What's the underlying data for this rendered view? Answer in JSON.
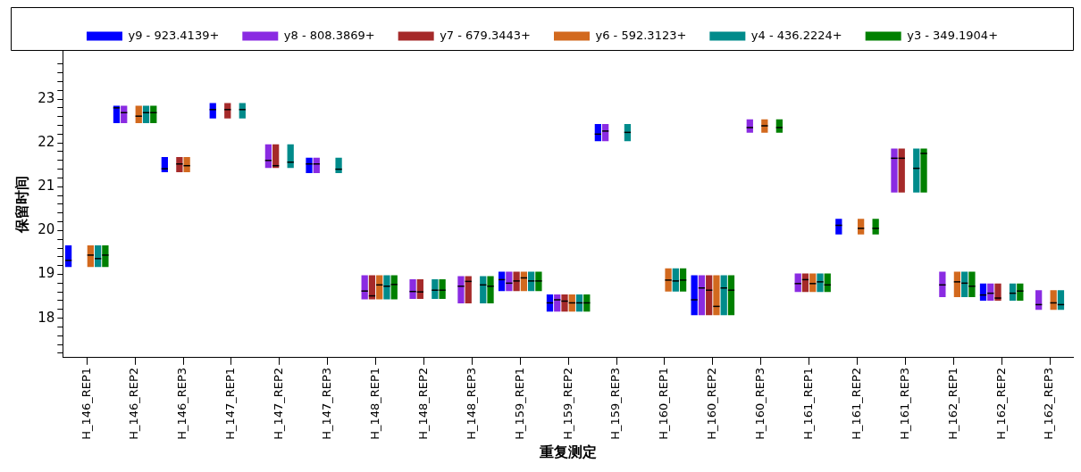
{
  "chart_data": {
    "type": "box",
    "xlabel": "重复测定",
    "ylabel": "保留时间",
    "legend": "top",
    "categories": [
      "H_146_REP1",
      "H_146_REP2",
      "H_146_REP3",
      "H_147_REP1",
      "H_147_REP2",
      "H_147_REP3",
      "H_148_REP1",
      "H_148_REP2",
      "H_148_REP3",
      "H_159_REP1",
      "H_159_REP2",
      "H_159_REP3",
      "H_160_REP1",
      "H_160_REP2",
      "H_160_REP3",
      "H_161_REP1",
      "H_161_REP2",
      "H_161_REP3",
      "H_162_REP1",
      "H_162_REP2",
      "H_162_REP3"
    ],
    "ylim": [
      17.1,
      24.1
    ],
    "yticks": [
      {
        "value": 17.2,
        "label": null
      },
      {
        "value": 17.4,
        "label": null
      },
      {
        "value": 17.6,
        "label": null
      },
      {
        "value": 17.8,
        "label": null
      },
      18,
      {
        "value": 18.2,
        "label": null
      },
      {
        "value": 18.4,
        "label": null
      },
      {
        "value": 18.6,
        "label": null
      },
      {
        "value": 18.8,
        "label": null
      },
      19,
      {
        "value": 19.2,
        "label": null
      },
      {
        "value": 19.4,
        "label": null
      },
      {
        "value": 19.6,
        "label": null
      },
      {
        "value": 19.8,
        "label": null
      },
      20,
      {
        "value": 20.2,
        "label": null
      },
      {
        "value": 20.4,
        "label": null
      },
      {
        "value": 20.6,
        "label": null
      },
      {
        "value": 20.8,
        "label": null
      },
      21,
      {
        "value": 21.2,
        "label": null
      },
      {
        "value": 21.4,
        "label": null
      },
      {
        "value": 21.6,
        "label": null
      },
      {
        "value": 21.8,
        "label": null
      },
      22,
      {
        "value": 22.2,
        "label": null
      },
      {
        "value": 22.4,
        "label": null
      },
      {
        "value": 22.6,
        "label": null
      },
      {
        "value": 22.8,
        "label": null
      },
      23,
      {
        "value": 23.2,
        "label": null
      },
      {
        "value": 23.4,
        "label": null
      },
      {
        "value": 23.6,
        "label": null
      },
      {
        "value": 23.8,
        "label": null
      }
    ],
    "series": [
      {
        "name": "y9 - 923.4139+",
        "color": "#0000ff",
        "boxes": [
          {
            "low": 19.17,
            "q1": 19.17,
            "median": 19.32,
            "q3": 19.66,
            "high": 19.66
          },
          {
            "low": 22.45,
            "q1": 22.45,
            "median": 22.8,
            "q3": 22.85,
            "high": 22.85
          },
          {
            "low": 21.33,
            "q1": 21.33,
            "median": 21.41,
            "q3": 21.68,
            "high": 21.68
          },
          {
            "low": 22.56,
            "q1": 22.56,
            "median": 22.76,
            "q3": 22.91,
            "high": 22.91
          },
          null,
          {
            "low": 21.31,
            "q1": 21.31,
            "median": 21.52,
            "q3": 21.66,
            "high": 21.66
          },
          null,
          null,
          null,
          {
            "low": 18.62,
            "q1": 18.62,
            "median": 18.88,
            "q3": 19.06,
            "high": 19.06
          },
          {
            "low": 18.15,
            "q1": 18.15,
            "median": 18.35,
            "q3": 18.54,
            "high": 18.54
          },
          {
            "low": 22.04,
            "q1": 22.04,
            "median": 22.2,
            "q3": 22.43,
            "high": 22.43
          },
          null,
          {
            "low": 18.07,
            "q1": 18.07,
            "median": 18.42,
            "q3": 18.98,
            "high": 18.98
          },
          null,
          null,
          {
            "low": 19.91,
            "q1": 19.91,
            "median": 20.12,
            "q3": 20.27,
            "high": 20.27
          },
          null,
          null,
          {
            "low": 18.4,
            "q1": 18.4,
            "median": 18.53,
            "q3": 18.79,
            "high": 18.79
          },
          null
        ]
      },
      {
        "name": "y8 - 808.3869+",
        "color": "#8a2be2",
        "boxes": [
          null,
          {
            "low": 22.45,
            "q1": 22.45,
            "median": 22.69,
            "q3": 22.85,
            "high": 22.85
          },
          null,
          null,
          {
            "low": 21.43,
            "q1": 21.43,
            "median": 21.6,
            "q3": 21.97,
            "high": 21.97
          },
          {
            "low": 21.31,
            "q1": 21.31,
            "median": 21.52,
            "q3": 21.66,
            "high": 21.66
          },
          {
            "low": 18.43,
            "q1": 18.43,
            "median": 18.62,
            "q3": 18.98,
            "high": 18.98
          },
          {
            "low": 18.44,
            "q1": 18.44,
            "median": 18.61,
            "q3": 18.89,
            "high": 18.89
          },
          {
            "low": 18.34,
            "q1": 18.34,
            "median": 18.73,
            "q3": 18.96,
            "high": 18.96
          },
          {
            "low": 18.62,
            "q1": 18.62,
            "median": 18.8,
            "q3": 19.06,
            "high": 19.06
          },
          {
            "low": 18.15,
            "q1": 18.15,
            "median": 18.42,
            "q3": 18.54,
            "high": 18.54
          },
          {
            "low": 22.04,
            "q1": 22.04,
            "median": 22.27,
            "q3": 22.43,
            "high": 22.43
          },
          null,
          {
            "low": 18.07,
            "q1": 18.07,
            "median": 18.69,
            "q3": 18.98,
            "high": 18.98
          },
          {
            "low": 22.23,
            "q1": 22.23,
            "median": 22.35,
            "q3": 22.54,
            "high": 22.54
          },
          {
            "low": 18.6,
            "q1": 18.6,
            "median": 18.79,
            "q3": 19.02,
            "high": 19.02
          },
          null,
          {
            "low": 20.87,
            "q1": 20.87,
            "median": 21.65,
            "q3": 21.87,
            "high": 21.87
          },
          {
            "low": 18.48,
            "q1": 18.48,
            "median": 18.76,
            "q3": 19.06,
            "high": 19.06
          },
          {
            "low": 18.4,
            "q1": 18.4,
            "median": 18.57,
            "q3": 18.79,
            "high": 18.79
          },
          {
            "low": 18.19,
            "q1": 18.19,
            "median": 18.31,
            "q3": 18.64,
            "high": 18.64
          }
        ]
      },
      {
        "name": "y7 - 679.3443+",
        "color": "#a52a2a",
        "boxes": [
          null,
          null,
          {
            "low": 21.33,
            "q1": 21.33,
            "median": 21.52,
            "q3": 21.68,
            "high": 21.68
          },
          {
            "low": 22.56,
            "q1": 22.56,
            "median": 22.76,
            "q3": 22.91,
            "high": 22.91
          },
          {
            "low": 21.43,
            "q1": 21.43,
            "median": 21.48,
            "q3": 21.97,
            "high": 21.97
          },
          null,
          {
            "low": 18.43,
            "q1": 18.43,
            "median": 18.51,
            "q3": 18.98,
            "high": 18.98
          },
          {
            "low": 18.44,
            "q1": 18.44,
            "median": 18.6,
            "q3": 18.89,
            "high": 18.89
          },
          {
            "low": 18.34,
            "q1": 18.34,
            "median": 18.84,
            "q3": 18.96,
            "high": 18.96
          },
          {
            "low": 18.62,
            "q1": 18.62,
            "median": 18.85,
            "q3": 19.06,
            "high": 19.06
          },
          {
            "low": 18.15,
            "q1": 18.15,
            "median": 18.39,
            "q3": 18.54,
            "high": 18.54
          },
          null,
          null,
          {
            "low": 18.07,
            "q1": 18.07,
            "median": 18.64,
            "q3": 18.98,
            "high": 18.98
          },
          null,
          {
            "low": 18.6,
            "q1": 18.6,
            "median": 18.88,
            "q3": 19.02,
            "high": 19.02
          },
          null,
          {
            "low": 20.87,
            "q1": 20.87,
            "median": 21.65,
            "q3": 21.87,
            "high": 21.87
          },
          null,
          {
            "low": 18.4,
            "q1": 18.4,
            "median": 18.46,
            "q3": 18.79,
            "high": 18.79
          },
          null
        ]
      },
      {
        "name": "y6 - 592.3123+",
        "color": "#d2691e",
        "boxes": [
          {
            "low": 19.17,
            "q1": 19.17,
            "median": 19.44,
            "q3": 19.66,
            "high": 19.66
          },
          {
            "low": 22.45,
            "q1": 22.45,
            "median": 22.61,
            "q3": 22.85,
            "high": 22.85
          },
          {
            "low": 21.33,
            "q1": 21.33,
            "median": 21.48,
            "q3": 21.68,
            "high": 21.68
          },
          null,
          null,
          null,
          {
            "low": 18.43,
            "q1": 18.43,
            "median": 18.76,
            "q3": 18.98,
            "high": 18.98
          },
          null,
          null,
          {
            "low": 18.62,
            "q1": 18.62,
            "median": 18.92,
            "q3": 19.06,
            "high": 19.06
          },
          {
            "low": 18.15,
            "q1": 18.15,
            "median": 18.35,
            "q3": 18.54,
            "high": 18.54
          },
          null,
          {
            "low": 18.61,
            "q1": 18.61,
            "median": 18.87,
            "q3": 19.14,
            "high": 19.14
          },
          {
            "low": 18.07,
            "q1": 18.07,
            "median": 18.27,
            "q3": 18.98,
            "high": 18.98
          },
          {
            "low": 22.23,
            "q1": 22.23,
            "median": 22.39,
            "q3": 22.54,
            "high": 22.54
          },
          {
            "low": 18.6,
            "q1": 18.6,
            "median": 18.79,
            "q3": 19.02,
            "high": 19.02
          },
          {
            "low": 19.91,
            "q1": 19.91,
            "median": 20.05,
            "q3": 20.27,
            "high": 20.27
          },
          null,
          {
            "low": 18.48,
            "q1": 18.48,
            "median": 18.83,
            "q3": 19.06,
            "high": 19.06
          },
          null,
          {
            "low": 18.19,
            "q1": 18.19,
            "median": 18.35,
            "q3": 18.64,
            "high": 18.64
          }
        ]
      },
      {
        "name": "y4 - 436.2224+",
        "color": "#008b8b",
        "boxes": [
          {
            "low": 19.17,
            "q1": 19.17,
            "median": 19.36,
            "q3": 19.66,
            "high": 19.66
          },
          {
            "low": 22.45,
            "q1": 22.45,
            "median": 22.69,
            "q3": 22.85,
            "high": 22.85
          },
          null,
          {
            "low": 22.56,
            "q1": 22.56,
            "median": 22.76,
            "q3": 22.91,
            "high": 22.91
          },
          {
            "low": 21.43,
            "q1": 21.43,
            "median": 21.56,
            "q3": 21.97,
            "high": 21.97
          },
          {
            "low": 21.31,
            "q1": 21.31,
            "median": 21.4,
            "q3": 21.66,
            "high": 21.66
          },
          {
            "low": 18.43,
            "q1": 18.43,
            "median": 18.73,
            "q3": 18.98,
            "high": 18.98
          },
          {
            "low": 18.44,
            "q1": 18.44,
            "median": 18.64,
            "q3": 18.89,
            "high": 18.89
          },
          {
            "low": 18.34,
            "q1": 18.34,
            "median": 18.76,
            "q3": 18.96,
            "high": 18.96
          },
          {
            "low": 18.62,
            "q1": 18.62,
            "median": 18.85,
            "q3": 19.06,
            "high": 19.06
          },
          {
            "low": 18.15,
            "q1": 18.15,
            "median": 18.35,
            "q3": 18.54,
            "high": 18.54
          },
          {
            "low": 22.04,
            "q1": 22.04,
            "median": 22.24,
            "q3": 22.43,
            "high": 22.43
          },
          {
            "low": 18.61,
            "q1": 18.61,
            "median": 18.85,
            "q3": 19.14,
            "high": 19.14
          },
          {
            "low": 18.07,
            "q1": 18.07,
            "median": 18.69,
            "q3": 18.98,
            "high": 18.98
          },
          null,
          {
            "low": 18.6,
            "q1": 18.6,
            "median": 18.83,
            "q3": 19.02,
            "high": 19.02
          },
          null,
          {
            "low": 20.87,
            "q1": 20.87,
            "median": 21.42,
            "q3": 21.87,
            "high": 21.87
          },
          {
            "low": 18.48,
            "q1": 18.48,
            "median": 18.8,
            "q3": 19.06,
            "high": 19.06
          },
          {
            "low": 18.4,
            "q1": 18.4,
            "median": 18.57,
            "q3": 18.79,
            "high": 18.79
          },
          {
            "low": 18.19,
            "q1": 18.19,
            "median": 18.31,
            "q3": 18.64,
            "high": 18.64
          }
        ]
      },
      {
        "name": "y3 - 349.1904+",
        "color": "#008000",
        "boxes": [
          {
            "low": 19.17,
            "q1": 19.17,
            "median": 19.44,
            "q3": 19.66,
            "high": 19.66
          },
          {
            "low": 22.45,
            "q1": 22.45,
            "median": 22.69,
            "q3": 22.85,
            "high": 22.85
          },
          null,
          null,
          null,
          null,
          {
            "low": 18.43,
            "q1": 18.43,
            "median": 18.77,
            "q3": 18.98,
            "high": 18.98
          },
          {
            "low": 18.44,
            "q1": 18.44,
            "median": 18.64,
            "q3": 18.89,
            "high": 18.89
          },
          {
            "low": 18.34,
            "q1": 18.34,
            "median": 18.73,
            "q3": 18.96,
            "high": 18.96
          },
          {
            "low": 18.62,
            "q1": 18.62,
            "median": 18.85,
            "q3": 19.06,
            "high": 19.06
          },
          {
            "low": 18.15,
            "q1": 18.15,
            "median": 18.35,
            "q3": 18.54,
            "high": 18.54
          },
          null,
          {
            "low": 18.61,
            "q1": 18.61,
            "median": 18.87,
            "q3": 19.14,
            "high": 19.14
          },
          {
            "low": 18.07,
            "q1": 18.07,
            "median": 18.64,
            "q3": 18.98,
            "high": 18.98
          },
          {
            "low": 22.23,
            "q1": 22.23,
            "median": 22.35,
            "q3": 22.54,
            "high": 22.54
          },
          {
            "low": 18.6,
            "q1": 18.6,
            "median": 18.76,
            "q3": 19.02,
            "high": 19.02
          },
          {
            "low": 19.91,
            "q1": 19.91,
            "median": 20.05,
            "q3": 20.27,
            "high": 20.27
          },
          {
            "low": 20.87,
            "q1": 20.87,
            "median": 21.76,
            "q3": 21.87,
            "high": 21.87
          },
          {
            "low": 18.48,
            "q1": 18.48,
            "median": 18.73,
            "q3": 19.06,
            "high": 19.06
          },
          {
            "low": 18.4,
            "q1": 18.4,
            "median": 18.62,
            "q3": 18.79,
            "high": 18.79
          },
          null
        ]
      }
    ]
  }
}
